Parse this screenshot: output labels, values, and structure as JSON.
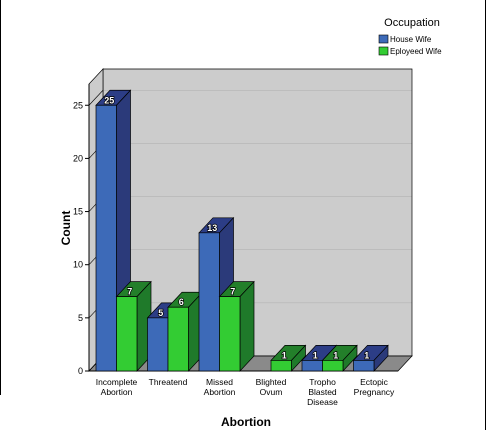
{
  "chart_data": {
    "type": "bar",
    "categories": [
      [
        "Incomplete",
        "Abortion"
      ],
      [
        "Threatend"
      ],
      [
        "Missed",
        "Abortion"
      ],
      [
        "Blighted",
        "Ovum"
      ],
      [
        "Tropho",
        "Blasted",
        "Disease"
      ],
      [
        "Ectopic",
        "Pregnancy"
      ]
    ],
    "series": [
      {
        "name": "House Wife",
        "values": [
          25,
          5,
          13,
          0,
          1,
          1
        ]
      },
      {
        "name": "Eployeed Wife",
        "values": [
          7,
          6,
          7,
          1,
          1,
          0
        ]
      }
    ],
    "data_labels": [
      [
        "25",
        "5",
        "13",
        null,
        "1",
        "1"
      ],
      [
        "7",
        "6",
        "7",
        "1",
        "1",
        null
      ]
    ],
    "xlabel": "Abortion",
    "ylabel": "Count",
    "ylim": [
      0,
      27
    ],
    "yticks": [
      0,
      5,
      10,
      15,
      20,
      25
    ],
    "legend": {
      "title": "Occupation",
      "position": "top-right"
    },
    "colors": {
      "house_front": "#3d6ab8",
      "house_side": "#2b3a7a",
      "house_top": "#2c3d86",
      "emp_front": "#33cc33",
      "emp_side": "#1f7a2a",
      "emp_top": "#237f2a",
      "back_wall": "#cccccc",
      "floor": "#8a8a8a",
      "grid_line": "#000000"
    }
  }
}
